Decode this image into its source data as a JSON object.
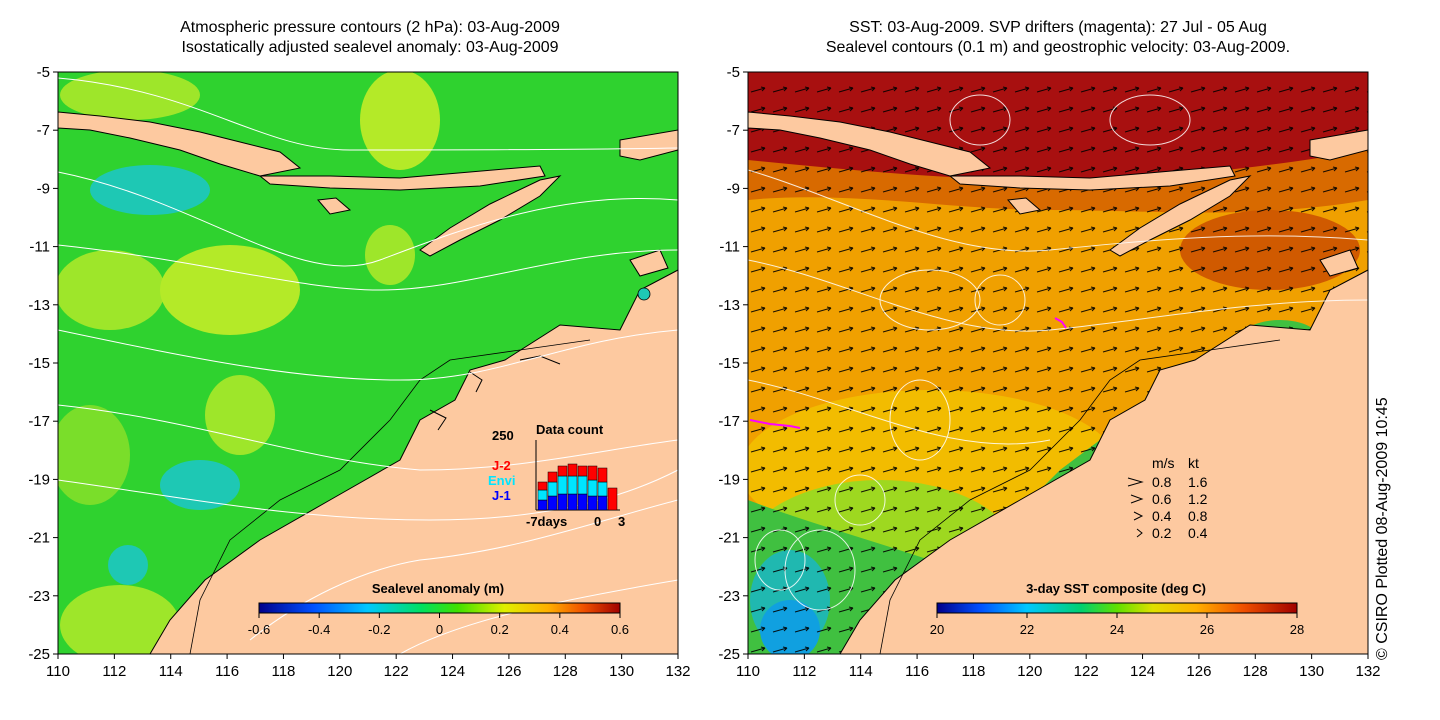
{
  "titles": {
    "left_line1": "Atmospheric pressure contours (2 hPa): 03-Aug-2009",
    "left_line2": "Isostatically adjusted sealevel anomaly: 03-Aug-2009",
    "right_line1": "SST: 03-Aug-2009. SVP drifters (magenta): 27 Jul - 05 Aug",
    "right_line2": "Sealevel contours (0.1 m) and geostrophic velocity: 03-Aug-2009."
  },
  "axes": {
    "x_ticks": [
      "110",
      "112",
      "114",
      "116",
      "118",
      "120",
      "122",
      "124",
      "126",
      "128",
      "130",
      "132"
    ],
    "y_ticks": [
      "-5",
      "-7",
      "-9",
      "-11",
      "-13",
      "-15",
      "-17",
      "-19",
      "-21",
      "-23",
      "-25"
    ],
    "lon_range": [
      110,
      132
    ],
    "lat_range": [
      -25,
      -5
    ]
  },
  "left_colorbar": {
    "title": "Sealevel anomaly (m)",
    "ticks": [
      "-0.6",
      "-0.4",
      "-0.2",
      "0",
      "0.2",
      "0.4",
      "0.6"
    ],
    "range": [
      -0.6,
      0.6
    ]
  },
  "right_colorbar": {
    "title": "3-day SST composite (deg C)",
    "ticks": [
      "20",
      "22",
      "24",
      "26",
      "28"
    ],
    "range": [
      20,
      28
    ]
  },
  "data_count": {
    "title": "Data count",
    "ymax_label": "250",
    "x_left_label": "-7days",
    "x_zero_label": "0",
    "x_right_label": "3",
    "missions": [
      "J-2",
      "Envi",
      "J-1"
    ],
    "colors": {
      "J-2": "#ff0000",
      "Envi": "#00e5ff",
      "J-1": "#0000ff"
    }
  },
  "velocity_legend": {
    "header_ms": "m/s",
    "header_kt": "kt",
    "rows": [
      {
        "ms": "0.8",
        "kt": "1.6"
      },
      {
        "ms": "0.6",
        "kt": "1.2"
      },
      {
        "ms": "0.4",
        "kt": "0.8"
      },
      {
        "ms": "0.2",
        "kt": "0.4"
      }
    ]
  },
  "credit": "© CSIRO Plotted 08-Aug-2009 10:45",
  "colors": {
    "land": "#fdc9a0",
    "sla_ocean": "#2fd22f",
    "sst_warm": "#f5a800",
    "sst_hot": "#a01010",
    "drifter": "#ff00ff"
  }
}
